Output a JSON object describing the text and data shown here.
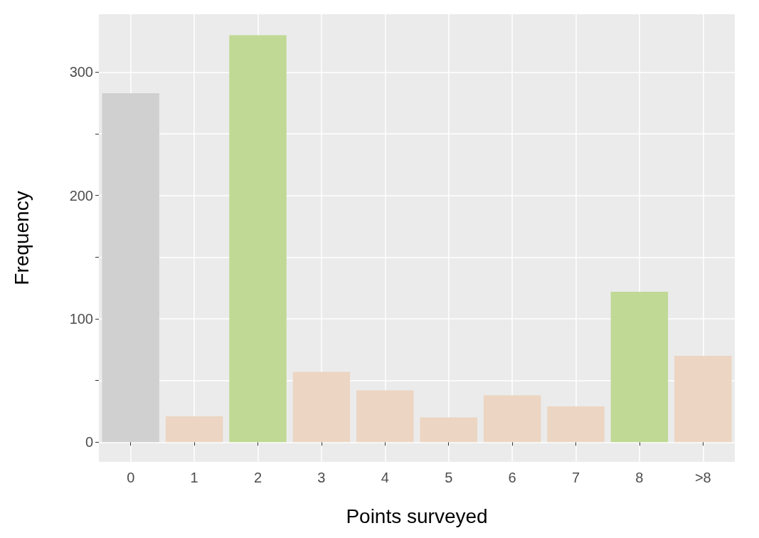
{
  "chart_data": {
    "type": "bar",
    "xlabel": "Points surveyed",
    "ylabel": "Frequency",
    "categories": [
      "0",
      "1",
      "2",
      "3",
      "4",
      "5",
      "6",
      "7",
      "8",
      ">8"
    ],
    "values": [
      283,
      21,
      330,
      57,
      42,
      20,
      38,
      29,
      122,
      70
    ],
    "colors": [
      "#d0d0d0",
      "#ecd5c2",
      "#c0d994",
      "#ecd5c2",
      "#ecd5c2",
      "#ecd5c2",
      "#ecd5c2",
      "#ecd5c2",
      "#c0d994",
      "#ecd5c2"
    ],
    "ylim": [
      -16,
      347
    ],
    "yticks": [
      0,
      {
        "value": 50,
        "label": null
      },
      100,
      {
        "value": 150,
        "label": null
      },
      200,
      {
        "value": 250,
        "label": null
      },
      300
    ],
    "grid": true
  }
}
